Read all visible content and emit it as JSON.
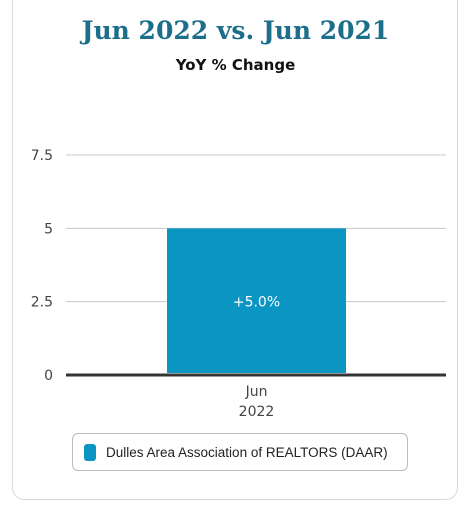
{
  "colors": {
    "title": "#1b6f8a",
    "bar": "#0a95c2",
    "grid": "#c8c8c8",
    "axis": "#333333",
    "tick_text": "#444444"
  },
  "chart_data": {
    "type": "bar",
    "title": "Jun 2022 vs. Jun 2021",
    "subtitle": "YoY % Change",
    "categories": [
      "Jun\n2022"
    ],
    "category_lines": [
      [
        "Jun",
        "2022"
      ]
    ],
    "series": [
      {
        "name": "Dulles Area Association of REALTORS (DAAR)",
        "values": [
          5.0
        ],
        "labels": [
          "+5.0%"
        ]
      }
    ],
    "yticks": [
      0,
      2.5,
      5,
      7.5
    ],
    "ytick_labels": [
      "0",
      "2.5",
      "5",
      "7.5"
    ],
    "ylim": [
      0,
      7.5
    ],
    "grid": true,
    "legend_position": "bottom-center"
  }
}
